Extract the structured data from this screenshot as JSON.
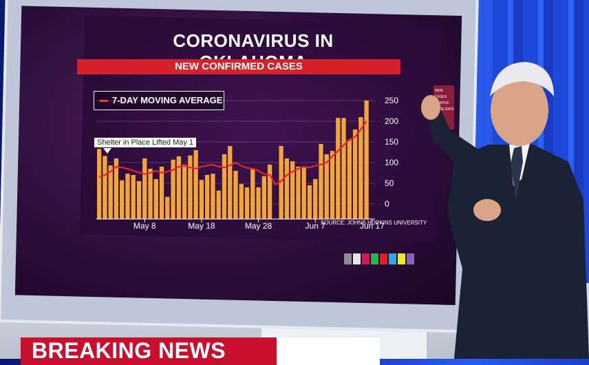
{
  "chart_data": {
    "type": "bar",
    "title": "CORONAVIRUS IN OKLAHOMA",
    "subtitle": "NEW CONFIRMED CASES",
    "legend": [
      "7-DAY MOVING AVERAGE"
    ],
    "annotation": "Shelter in Place Lifted May 1",
    "source": "SOURCE: JOHNS HOPKINS UNIVERSITY",
    "x_ticks": [
      {
        "label": "May 8",
        "index": 8
      },
      {
        "label": "May 18",
        "index": 18
      },
      {
        "label": "May 28",
        "index": 28
      },
      {
        "label": "Jun 7",
        "index": 38
      },
      {
        "label": "Jun 17",
        "index": 48
      }
    ],
    "y_ticks": [
      0,
      50,
      100,
      150,
      200,
      250
    ],
    "ylim": [
      0,
      260
    ],
    "series": [
      {
        "name": "New confirmed cases",
        "values": [
          133,
          116,
          93,
          110,
          57,
          73,
          70,
          55,
          110,
          85,
          60,
          90,
          17,
          107,
          115,
          95,
          117,
          130,
          58,
          70,
          73,
          32,
          120,
          140,
          80,
          48,
          40,
          86,
          40,
          67,
          95,
          0,
          140,
          110,
          103,
          90,
          88,
          45,
          60,
          145,
          120,
          128,
          208,
          208,
          155,
          180,
          210,
          250,
          0
        ]
      },
      {
        "name": "7-DAY MOVING AVERAGE",
        "type": "line",
        "values": [
          65,
          70,
          78,
          90,
          88,
          85,
          80,
          76,
          72,
          75,
          80,
          75,
          78,
          82,
          90,
          92,
          88,
          85,
          90,
          93,
          95,
          90,
          88,
          93,
          100,
          92,
          87,
          85,
          80,
          72,
          70,
          47,
          55,
          70,
          78,
          85,
          90,
          88,
          92,
          95,
          100,
          115,
          128,
          142,
          155,
          162,
          180,
          200,
          0
        ]
      }
    ]
  },
  "banner": {
    "text": "BREAKING NEWS"
  },
  "side_panel": {
    "lines": [
      "NEW",
      "CASES",
      "DEATHS",
      "CASE RATE"
    ]
  },
  "colors": {
    "bar": "#f2a53a",
    "line": "#e8232b",
    "banner": "#c8102e",
    "title_bar": "#d6202a"
  }
}
